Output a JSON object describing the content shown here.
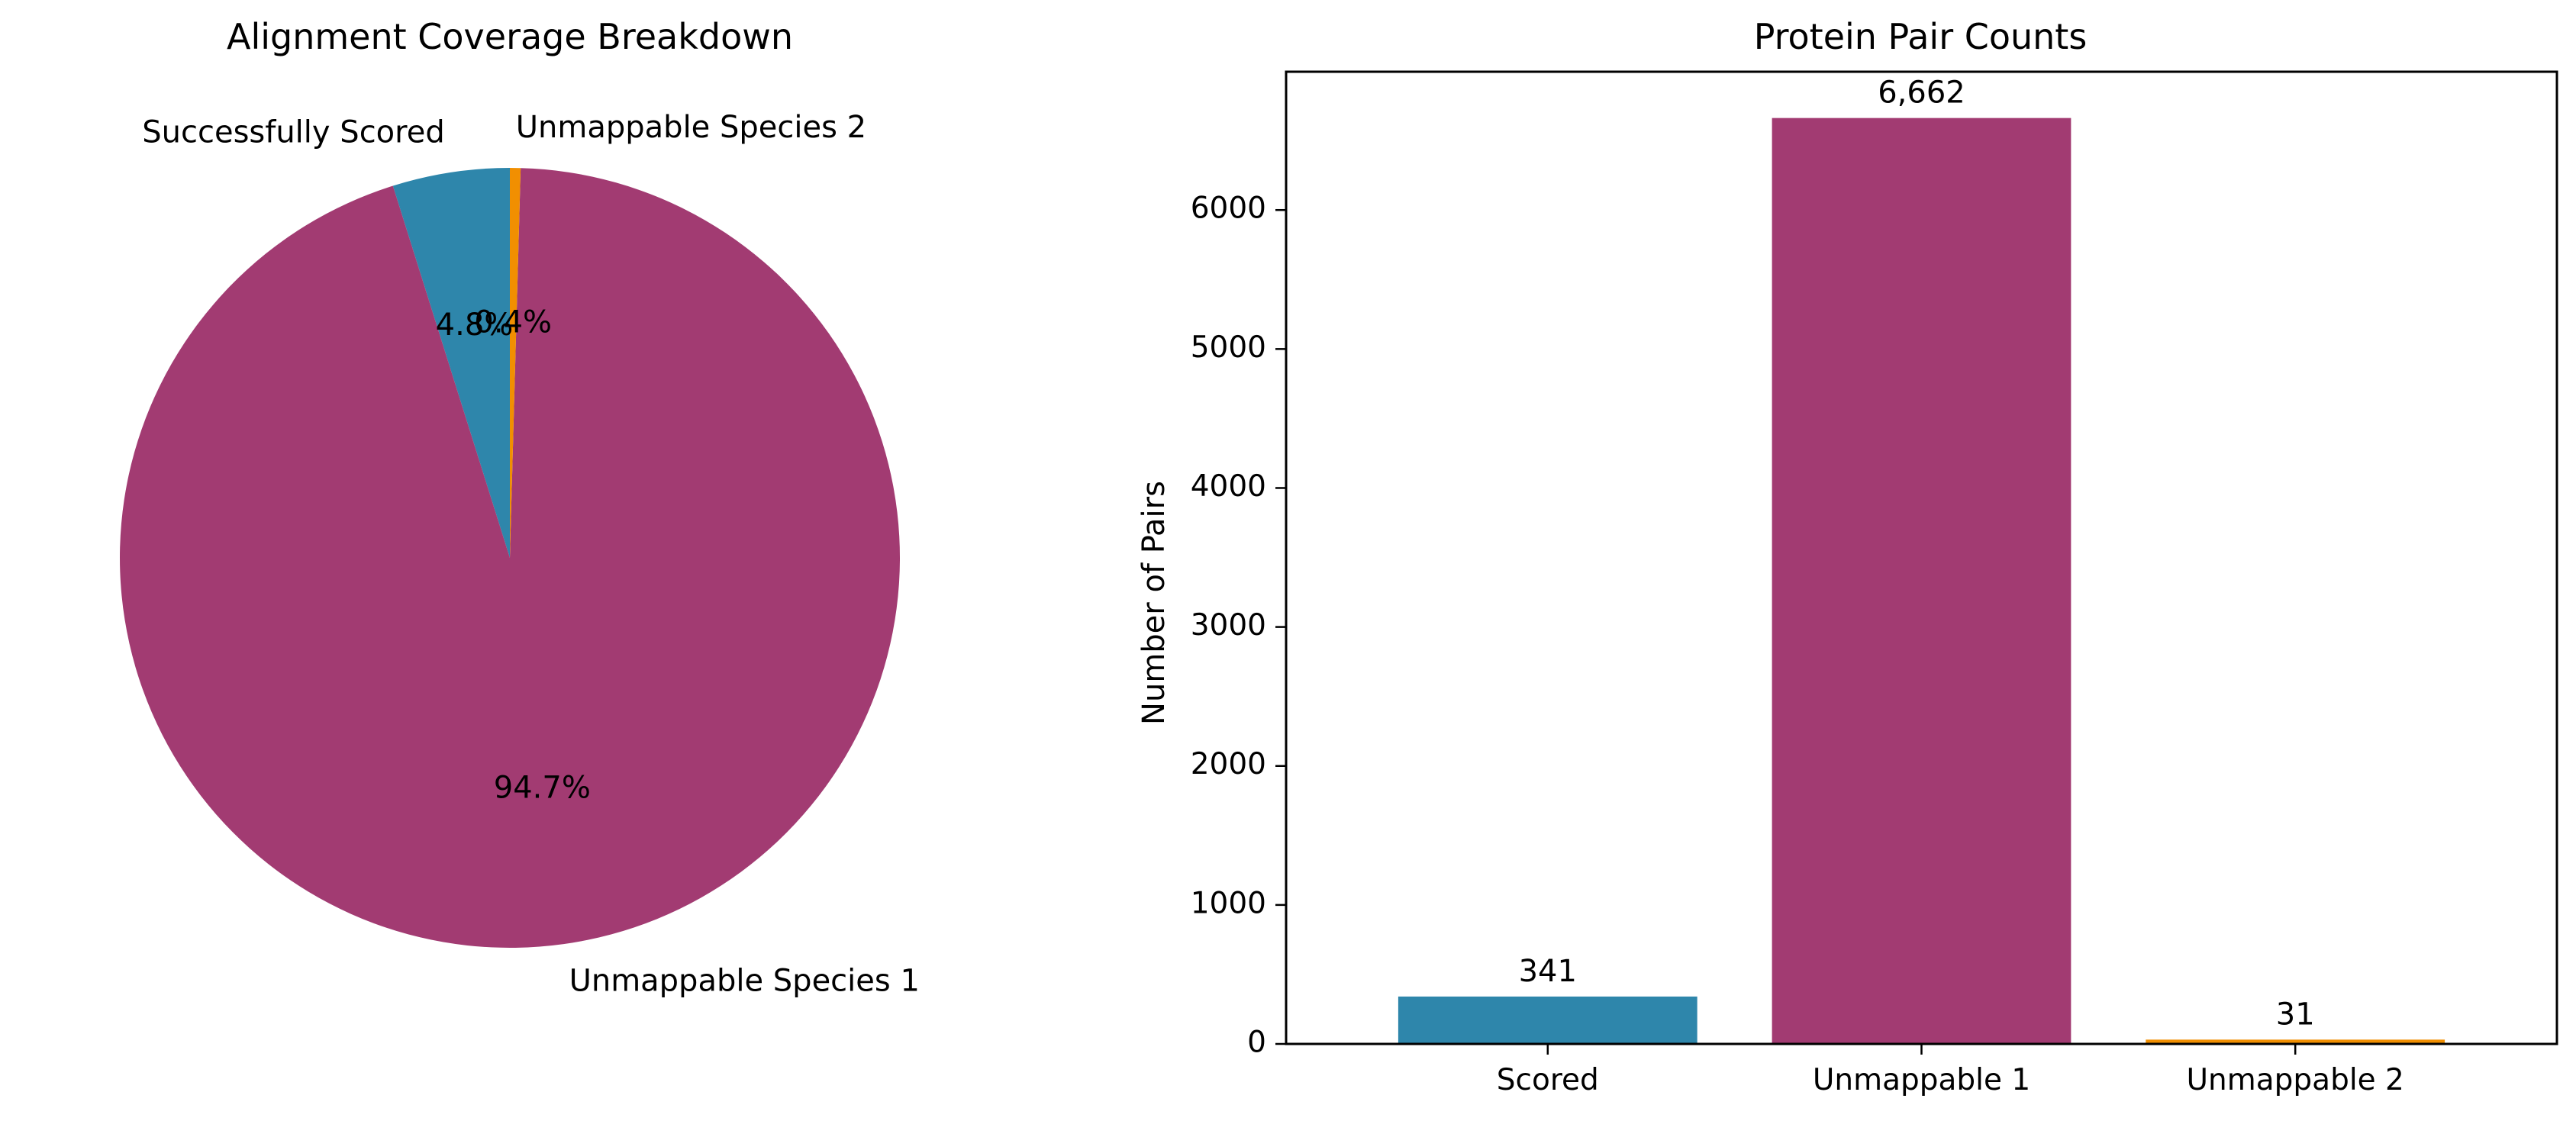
{
  "colors": {
    "scored": "#2E86AB",
    "unmappable1": "#A23B72",
    "unmappable2": "#F18F01"
  },
  "chart_data": [
    {
      "type": "pie",
      "title": "Alignment Coverage Breakdown",
      "labels": [
        "Successfully Scored",
        "Unmappable Species 1",
        "Unmappable Species 2"
      ],
      "values": [
        341,
        6662,
        31
      ],
      "percent_labels": [
        "4.8%",
        "94.7%",
        "0.4%"
      ],
      "start_angle_deg": 90,
      "direction": "counterclockwise"
    },
    {
      "type": "bar",
      "title": "Protein Pair Counts",
      "categories": [
        "Scored",
        "Unmappable 1",
        "Unmappable 2"
      ],
      "values": [
        341,
        6662,
        31
      ],
      "value_labels": [
        "341",
        "6,662",
        "31"
      ],
      "xlabel": "",
      "ylabel": "Number of Pairs",
      "ylim": [
        0,
        6995
      ],
      "yticks": [
        0,
        1000,
        2000,
        3000,
        4000,
        5000,
        6000
      ],
      "ytick_labels": [
        "0",
        "1000",
        "2000",
        "3000",
        "4000",
        "5000",
        "6000"
      ],
      "grid": false,
      "legend": "none"
    }
  ]
}
